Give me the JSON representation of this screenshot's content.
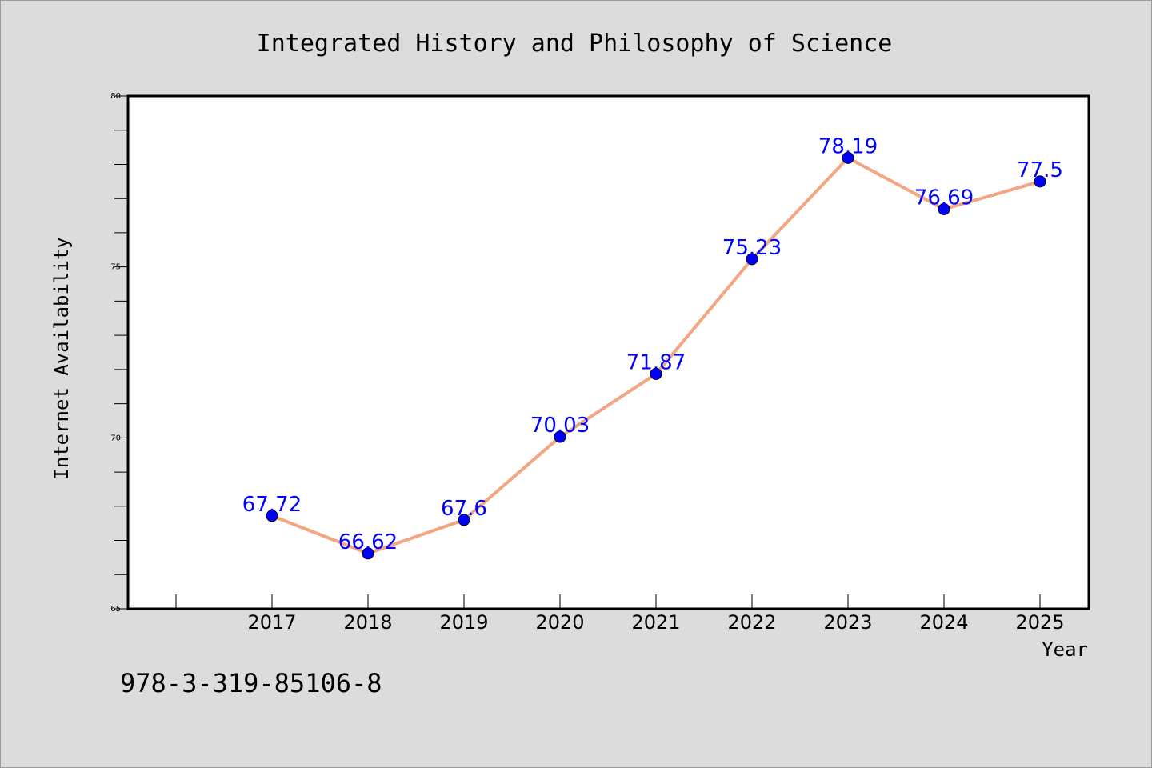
{
  "page": {
    "background": "#dcdcdc",
    "footer_text": "978-3-319-85106-8"
  },
  "chart_data": {
    "type": "line",
    "title": "Integrated History and Philosophy of Science",
    "xlabel": "Year",
    "ylabel": "Internet Availability",
    "categories": [
      "2017",
      "2018",
      "2019",
      "2020",
      "2021",
      "2022",
      "2023",
      "2024",
      "2025"
    ],
    "values": [
      67.72,
      66.62,
      67.6,
      70.03,
      71.87,
      75.23,
      78.19,
      76.69,
      77.5
    ],
    "data_labels": [
      "67.72",
      "66.62",
      "67.6",
      "70.03",
      "71.87",
      "75.23",
      "78.19",
      "76.69",
      "77.5"
    ],
    "ylim": [
      65,
      80
    ],
    "yticks": [
      "65",
      "70",
      "75",
      "80"
    ],
    "grid": false,
    "line_color": "#f4a582",
    "marker_color": "#0000ff",
    "label_color": "#0000ff"
  }
}
